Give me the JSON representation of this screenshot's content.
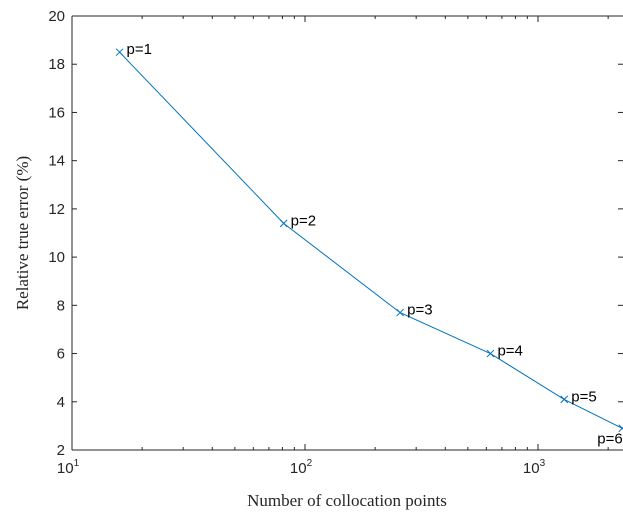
{
  "chart_data": {
    "type": "line",
    "xlabel": "Number of collocation points",
    "ylabel": "Relative true error (%)",
    "xscale": "log",
    "xlim": [
      10,
      2300
    ],
    "ylim": [
      2,
      20
    ],
    "grid": false,
    "x_tick_labels": [
      {
        "value": 10,
        "base": "10",
        "exp": "1"
      },
      {
        "value": 100,
        "base": "10",
        "exp": "2"
      },
      {
        "value": 1000,
        "base": "10",
        "exp": "3"
      }
    ],
    "y_ticks": [
      2,
      4,
      6,
      8,
      10,
      12,
      14,
      16,
      18,
      20
    ],
    "series": [
      {
        "color": "#0072BD",
        "marker": "x",
        "x": [
          16,
          81,
          256,
          625,
          1296,
          2300
        ],
        "y": [
          18.5,
          11.4,
          7.7,
          6.0,
          4.1,
          2.9
        ]
      }
    ],
    "annotations": [
      {
        "text": "p=1",
        "x": 16,
        "y": 18.5
      },
      {
        "text": "p=2",
        "x": 81,
        "y": 11.4
      },
      {
        "text": "p=3",
        "x": 256,
        "y": 7.7
      },
      {
        "text": "p=4",
        "x": 625,
        "y": 6.0
      },
      {
        "text": "p=5",
        "x": 1296,
        "y": 4.1
      },
      {
        "text": "p=6",
        "x": 2300,
        "y": 2.9
      }
    ]
  }
}
